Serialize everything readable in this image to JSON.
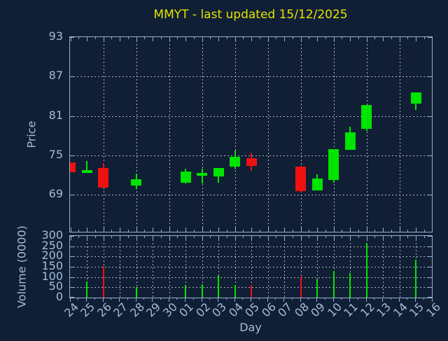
{
  "title": "MMYT - last updated 15/12/2025",
  "colors": {
    "background": "#101f35",
    "axis": "#93b1d1",
    "tick_label": "#a3bdd9",
    "title": "#e3e300",
    "grid": "#c9cfd8",
    "up": "#00e400",
    "down": "#ee1111"
  },
  "chart_data": {
    "type": "candlestick",
    "title": "MMYT - last updated 15/12/2025",
    "xlabel": "Day",
    "legend": null,
    "grid": true,
    "price_panel": {
      "ylabel": "Price",
      "yticks": [
        93,
        87,
        81,
        75,
        69
      ],
      "ylim": [
        63.4,
        93
      ],
      "grid_day_indices": [
        2,
        4,
        6,
        8,
        10,
        12,
        14,
        16,
        18,
        20
      ]
    },
    "volume_panel": {
      "ylabel": "Volume (0000)",
      "yticks": [
        300,
        250,
        200,
        150,
        100,
        50,
        0
      ],
      "ylim": [
        0,
        300
      ]
    },
    "day_labels": [
      "24",
      "25",
      "26",
      "27",
      "28",
      "29",
      "30",
      "01",
      "02",
      "03",
      "04",
      "05",
      "06",
      "07",
      "08",
      "09",
      "10",
      "11",
      "12",
      "13",
      "14",
      "15",
      "16"
    ],
    "candles": [
      {
        "day": "24",
        "open": 73.9,
        "high": 73.9,
        "low": 72.4,
        "close": 72.4,
        "volume": null
      },
      {
        "day": "25",
        "open": 72.3,
        "high": 74.2,
        "low": 72.3,
        "close": 72.8,
        "volume": 77
      },
      {
        "day": "26",
        "open": 73.1,
        "high": 73.8,
        "low": 70.1,
        "close": 70.1,
        "volume": 155
      },
      {
        "day": "28",
        "open": 70.4,
        "high": 72.2,
        "low": 69.9,
        "close": 71.4,
        "volume": 51
      },
      {
        "day": "01",
        "open": 70.9,
        "high": 73.0,
        "low": 70.7,
        "close": 72.6,
        "volume": 63
      },
      {
        "day": "02",
        "open": 71.9,
        "high": 73.0,
        "low": 70.7,
        "close": 72.3,
        "volume": 66
      },
      {
        "day": "03",
        "open": 71.8,
        "high": 73.1,
        "low": 70.9,
        "close": 73.1,
        "volume": 110
      },
      {
        "day": "04",
        "open": 73.3,
        "high": 75.7,
        "low": 73.0,
        "close": 74.8,
        "volume": 63
      },
      {
        "day": "05",
        "open": 74.6,
        "high": 75.4,
        "low": 72.7,
        "close": 73.4,
        "volume": 60
      },
      {
        "day": "08",
        "open": 73.3,
        "high": 73.4,
        "low": 69.4,
        "close": 69.6,
        "volume": 103
      },
      {
        "day": "09",
        "open": 69.7,
        "high": 72.1,
        "low": 69.7,
        "close": 71.5,
        "volume": 90
      },
      {
        "day": "10",
        "open": 71.3,
        "high": 76.0,
        "low": 70.9,
        "close": 76.0,
        "volume": 130
      },
      {
        "day": "11",
        "open": 75.9,
        "high": 79.4,
        "low": 75.9,
        "close": 78.5,
        "volume": 118
      },
      {
        "day": "12",
        "open": 79.1,
        "high": 82.7,
        "low": 78.7,
        "close": 82.7,
        "volume": 265
      },
      {
        "day": "15",
        "open": 82.9,
        "high": 84.6,
        "low": 81.9,
        "close": 84.6,
        "volume": 185
      }
    ]
  }
}
